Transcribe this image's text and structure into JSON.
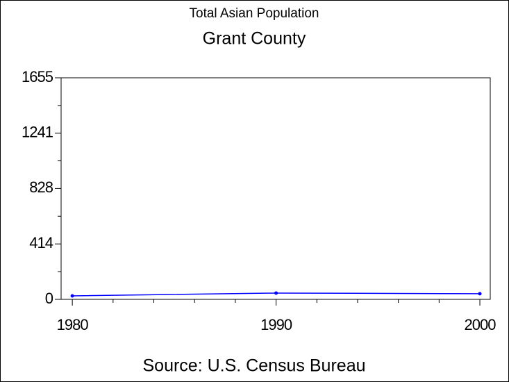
{
  "chart_data": {
    "type": "line",
    "title": "Total Asian Population",
    "subtitle": "Grant County",
    "footnote": "Source: U.S. Census Bureau",
    "x": [
      1980,
      1990,
      2000
    ],
    "series": [
      {
        "name": "Total Asian Population",
        "color": "#0000ff",
        "values": [
          26,
          47,
          42
        ]
      }
    ],
    "xlim": [
      1979.45,
      2000.51
    ],
    "xticks": [
      1980,
      1990,
      2000
    ],
    "ylim": [
      0,
      1655
    ],
    "yticks": [
      0,
      414,
      828,
      1241,
      1655
    ],
    "grid": false
  }
}
